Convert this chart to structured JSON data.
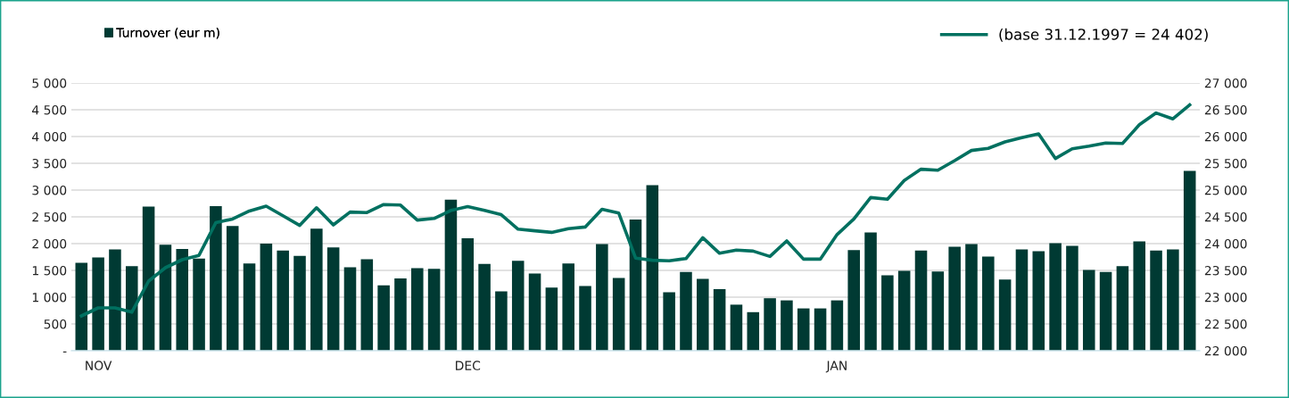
{
  "chart_data": {
    "type": "bar",
    "categories": [
      null,
      "NOV",
      null,
      null,
      null,
      null,
      null,
      null,
      null,
      null,
      null,
      null,
      null,
      null,
      null,
      null,
      null,
      null,
      null,
      null,
      null,
      null,
      null,
      "DEC",
      null,
      null,
      null,
      null,
      null,
      null,
      null,
      null,
      null,
      null,
      null,
      null,
      null,
      null,
      null,
      null,
      null,
      null,
      null,
      null,
      null,
      "JAN",
      null,
      null,
      null,
      null,
      null,
      null,
      null,
      null,
      null,
      null,
      null,
      null,
      null,
      null,
      null,
      null,
      null,
      null,
      null,
      null,
      null
    ],
    "series": [
      {
        "name": "Turnover (eur m)",
        "color": "#003a33",
        "values": [
          1640,
          1740,
          1890,
          1580,
          2690,
          1980,
          1900,
          1720,
          2700,
          2330,
          1630,
          2000,
          1870,
          1770,
          2280,
          1930,
          1560,
          1710,
          1220,
          1350,
          1540,
          1530,
          2820,
          2100,
          1620,
          1110,
          1680,
          1440,
          1180,
          1630,
          1210,
          1990,
          1360,
          2450,
          3090,
          1090,
          1470,
          1340,
          1150,
          860,
          720,
          980,
          940,
          790,
          790,
          940,
          1880,
          2210,
          1410,
          1490,
          1870,
          1480,
          1940,
          1990,
          1760,
          1330,
          1890,
          1860,
          2010,
          1960,
          1510,
          1470,
          1580,
          2040,
          1870,
          1890,
          3360
        ]
      },
      {
        "name": "(base 31.12.1997 = 24 402)",
        "type": "line",
        "axis": "y2",
        "color": "#007060",
        "values": [
          22650,
          22800,
          22800,
          22720,
          23300,
          23550,
          23700,
          23780,
          24390,
          24460,
          24610,
          24700,
          24520,
          24340,
          24670,
          24350,
          24590,
          24580,
          24730,
          24720,
          24440,
          24470,
          24620,
          24690,
          24620,
          24540,
          24270,
          24240,
          24210,
          24280,
          24310,
          24640,
          24570,
          23730,
          23690,
          23680,
          23720,
          24110,
          23820,
          23880,
          23860,
          23760,
          24050,
          23710,
          23710,
          24170,
          24460,
          24860,
          24830,
          25180,
          25390,
          25370,
          25550,
          25740,
          25780,
          25900,
          25980,
          26050,
          25590,
          25770,
          25820,
          25880,
          25870,
          26220,
          26440,
          26330,
          26590
        ]
      }
    ],
    "ylim": [
      0,
      5000
    ],
    "yticks": [
      {
        "value": 0,
        "label": "-"
      },
      {
        "value": 500,
        "label": "500"
      },
      {
        "value": 1000,
        "label": "1 000"
      },
      {
        "value": 1500,
        "label": "1 500"
      },
      {
        "value": 2000,
        "label": "2 000"
      },
      {
        "value": 2500,
        "label": "2 500"
      },
      {
        "value": 3000,
        "label": "3 000"
      },
      {
        "value": 3500,
        "label": "3 500"
      },
      {
        "value": 4000,
        "label": "4 000"
      },
      {
        "value": 4500,
        "label": "4 500"
      },
      {
        "value": 5000,
        "label": "5 000"
      }
    ],
    "y2lim": [
      22000,
      27000
    ],
    "y2ticks": [
      {
        "value": 22000,
        "label": "22 000"
      },
      {
        "value": 22500,
        "label": "22 500"
      },
      {
        "value": 23000,
        "label": "23 000"
      },
      {
        "value": 23500,
        "label": "23 500"
      },
      {
        "value": 24000,
        "label": "24 000"
      },
      {
        "value": 24500,
        "label": "24 500"
      },
      {
        "value": 25000,
        "label": "25 000"
      },
      {
        "value": 25500,
        "label": "25 500"
      },
      {
        "value": 26000,
        "label": "26 000"
      },
      {
        "value": 26500,
        "label": "26 500"
      },
      {
        "value": 27000,
        "label": "27 000"
      }
    ],
    "grid": "y",
    "legend": "top",
    "line_style": "solid",
    "marker": "none"
  }
}
